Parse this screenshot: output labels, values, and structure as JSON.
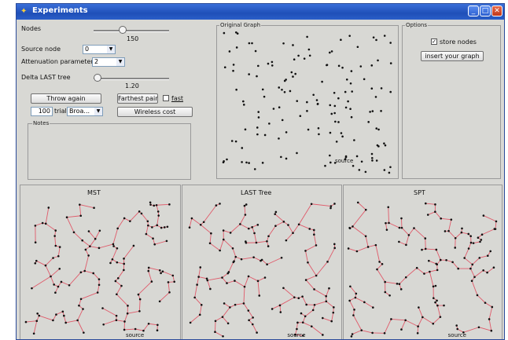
{
  "window": {
    "title": "Experiments"
  },
  "controls": {
    "nodes_label": "Nodes",
    "nodes_value": "150",
    "source_node_label": "Source node",
    "source_node_value": "0",
    "attenuation_label": "Attenuation parameter",
    "attenuation_value": "2",
    "delta_label": "Delta LAST tree",
    "delta_value": "1.20",
    "throw_again": "Throw again",
    "farthest_pair": "Farthest pair",
    "fast_label": "fast",
    "trials_value": "100",
    "trials_label": "trials",
    "broadcast_value": "Broa...",
    "wireless_cost": "Wireless cost",
    "notes_label": "Notes"
  },
  "graph_panel": {
    "title": "Original Graph",
    "source_label": "source"
  },
  "options": {
    "title": "Options",
    "store_nodes_label": "store nodes",
    "store_nodes_checked": true,
    "insert_graph": "insert your graph"
  },
  "trees": [
    {
      "title": "MST",
      "source_label": "source"
    },
    {
      "title": "LAST Tree",
      "source_label": "source"
    },
    {
      "title": "SPT",
      "source_label": "source"
    }
  ],
  "colors": {
    "edge": "#e05a6a",
    "node": "#111111"
  }
}
